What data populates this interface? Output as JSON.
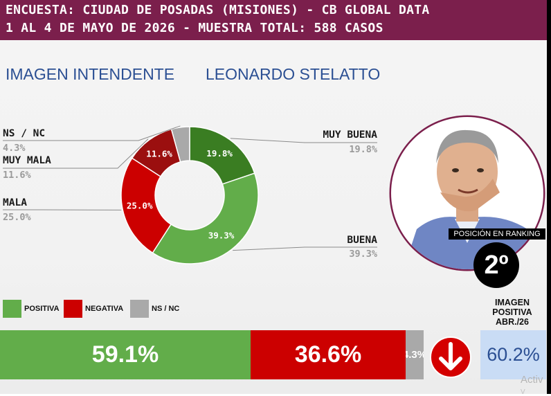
{
  "header": {
    "line1": "ENCUESTA: CIUDAD DE POSADAS (MISIONES) - CB GLOBAL DATA",
    "line2": "1 AL 4 DE MAYO DE 2026 - MUESTRA TOTAL: 588 CASOS"
  },
  "title": {
    "part1": "IMAGEN INTENDENTE",
    "part2": "LEONARDO STELATTO"
  },
  "colors": {
    "header_bg": "#7b1f4c",
    "dark_green": "#3a7d22",
    "light_green": "#62ad4a",
    "red": "#cc0000",
    "dark_red": "#9b0f0f",
    "gray": "#a9a9a9",
    "title_blue": "#2b4f93",
    "image_value_bg": "#c9dcf5"
  },
  "chart_data": [
    {
      "type": "pie",
      "variant": "donut",
      "categories": [
        "MUY BUENA",
        "BUENA",
        "MALA",
        "MUY MALA",
        "NS / NC"
      ],
      "values": [
        19.8,
        39.3,
        25.0,
        11.6,
        4.3
      ],
      "labels": [
        "19.8%",
        "39.3%",
        "25.0%",
        "11.6%",
        "4.3%"
      ],
      "colors": [
        "#3a7d22",
        "#62ad4a",
        "#cc0000",
        "#9b0f0f",
        "#a9a9a9"
      ]
    },
    {
      "type": "bar",
      "orientation": "horizontal-stacked",
      "categories": [
        "POSITIVA",
        "NEGATIVA",
        "NS / NC"
      ],
      "values": [
        59.1,
        36.6,
        4.3
      ],
      "labels": [
        "59.1%",
        "36.6%",
        "4.3%"
      ],
      "colors": [
        "#62ad4a",
        "#cc0000",
        "#a9a9a9"
      ]
    }
  ],
  "legend": [
    {
      "label": "POSITIVA",
      "color": "#62ad4a"
    },
    {
      "label": "NEGATIVA",
      "color": "#cc0000"
    },
    {
      "label": "NS / NC",
      "color": "#a9a9a9"
    }
  ],
  "ranking": {
    "label": "POSICIÓN EN RANKING",
    "value": "2º"
  },
  "previous_image": {
    "title_lines": [
      "IMAGEN",
      "POSITIVA",
      "ABR./26"
    ],
    "value": "60.2%",
    "trend_icon": "down-arrow-icon"
  },
  "watermark": {
    "line1": "Activ",
    "line2": "V"
  }
}
